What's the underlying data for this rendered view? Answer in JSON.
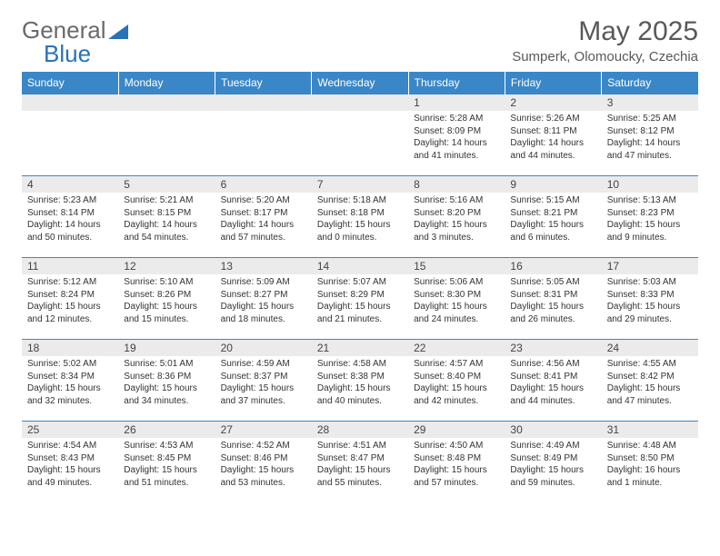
{
  "brand": {
    "name_a": "General",
    "name_b": "Blue"
  },
  "title": "May 2025",
  "location": "Sumperk, Olomoucky, Czechia",
  "colors": {
    "header_bg": "#3a87c8",
    "header_text": "#ffffff",
    "daynum_bg": "#ebebeb",
    "border": "#3a87c8",
    "title_color": "#595959",
    "brand_gray": "#6a6a6a",
    "brand_blue": "#2872b8",
    "body_text": "#333333"
  },
  "day_headers": [
    "Sunday",
    "Monday",
    "Tuesday",
    "Wednesday",
    "Thursday",
    "Friday",
    "Saturday"
  ],
  "labels": {
    "sunrise": "Sunrise:",
    "sunset": "Sunset:",
    "daylight": "Daylight:"
  },
  "weeks": [
    [
      null,
      null,
      null,
      null,
      {
        "n": "1",
        "sunrise": "5:28 AM",
        "sunset": "8:09 PM",
        "daylight": "14 hours and 41 minutes."
      },
      {
        "n": "2",
        "sunrise": "5:26 AM",
        "sunset": "8:11 PM",
        "daylight": "14 hours and 44 minutes."
      },
      {
        "n": "3",
        "sunrise": "5:25 AM",
        "sunset": "8:12 PM",
        "daylight": "14 hours and 47 minutes."
      }
    ],
    [
      {
        "n": "4",
        "sunrise": "5:23 AM",
        "sunset": "8:14 PM",
        "daylight": "14 hours and 50 minutes."
      },
      {
        "n": "5",
        "sunrise": "5:21 AM",
        "sunset": "8:15 PM",
        "daylight": "14 hours and 54 minutes."
      },
      {
        "n": "6",
        "sunrise": "5:20 AM",
        "sunset": "8:17 PM",
        "daylight": "14 hours and 57 minutes."
      },
      {
        "n": "7",
        "sunrise": "5:18 AM",
        "sunset": "8:18 PM",
        "daylight": "15 hours and 0 minutes."
      },
      {
        "n": "8",
        "sunrise": "5:16 AM",
        "sunset": "8:20 PM",
        "daylight": "15 hours and 3 minutes."
      },
      {
        "n": "9",
        "sunrise": "5:15 AM",
        "sunset": "8:21 PM",
        "daylight": "15 hours and 6 minutes."
      },
      {
        "n": "10",
        "sunrise": "5:13 AM",
        "sunset": "8:23 PM",
        "daylight": "15 hours and 9 minutes."
      }
    ],
    [
      {
        "n": "11",
        "sunrise": "5:12 AM",
        "sunset": "8:24 PM",
        "daylight": "15 hours and 12 minutes."
      },
      {
        "n": "12",
        "sunrise": "5:10 AM",
        "sunset": "8:26 PM",
        "daylight": "15 hours and 15 minutes."
      },
      {
        "n": "13",
        "sunrise": "5:09 AM",
        "sunset": "8:27 PM",
        "daylight": "15 hours and 18 minutes."
      },
      {
        "n": "14",
        "sunrise": "5:07 AM",
        "sunset": "8:29 PM",
        "daylight": "15 hours and 21 minutes."
      },
      {
        "n": "15",
        "sunrise": "5:06 AM",
        "sunset": "8:30 PM",
        "daylight": "15 hours and 24 minutes."
      },
      {
        "n": "16",
        "sunrise": "5:05 AM",
        "sunset": "8:31 PM",
        "daylight": "15 hours and 26 minutes."
      },
      {
        "n": "17",
        "sunrise": "5:03 AM",
        "sunset": "8:33 PM",
        "daylight": "15 hours and 29 minutes."
      }
    ],
    [
      {
        "n": "18",
        "sunrise": "5:02 AM",
        "sunset": "8:34 PM",
        "daylight": "15 hours and 32 minutes."
      },
      {
        "n": "19",
        "sunrise": "5:01 AM",
        "sunset": "8:36 PM",
        "daylight": "15 hours and 34 minutes."
      },
      {
        "n": "20",
        "sunrise": "4:59 AM",
        "sunset": "8:37 PM",
        "daylight": "15 hours and 37 minutes."
      },
      {
        "n": "21",
        "sunrise": "4:58 AM",
        "sunset": "8:38 PM",
        "daylight": "15 hours and 40 minutes."
      },
      {
        "n": "22",
        "sunrise": "4:57 AM",
        "sunset": "8:40 PM",
        "daylight": "15 hours and 42 minutes."
      },
      {
        "n": "23",
        "sunrise": "4:56 AM",
        "sunset": "8:41 PM",
        "daylight": "15 hours and 44 minutes."
      },
      {
        "n": "24",
        "sunrise": "4:55 AM",
        "sunset": "8:42 PM",
        "daylight": "15 hours and 47 minutes."
      }
    ],
    [
      {
        "n": "25",
        "sunrise": "4:54 AM",
        "sunset": "8:43 PM",
        "daylight": "15 hours and 49 minutes."
      },
      {
        "n": "26",
        "sunrise": "4:53 AM",
        "sunset": "8:45 PM",
        "daylight": "15 hours and 51 minutes."
      },
      {
        "n": "27",
        "sunrise": "4:52 AM",
        "sunset": "8:46 PM",
        "daylight": "15 hours and 53 minutes."
      },
      {
        "n": "28",
        "sunrise": "4:51 AM",
        "sunset": "8:47 PM",
        "daylight": "15 hours and 55 minutes."
      },
      {
        "n": "29",
        "sunrise": "4:50 AM",
        "sunset": "8:48 PM",
        "daylight": "15 hours and 57 minutes."
      },
      {
        "n": "30",
        "sunrise": "4:49 AM",
        "sunset": "8:49 PM",
        "daylight": "15 hours and 59 minutes."
      },
      {
        "n": "31",
        "sunrise": "4:48 AM",
        "sunset": "8:50 PM",
        "daylight": "16 hours and 1 minute."
      }
    ]
  ]
}
